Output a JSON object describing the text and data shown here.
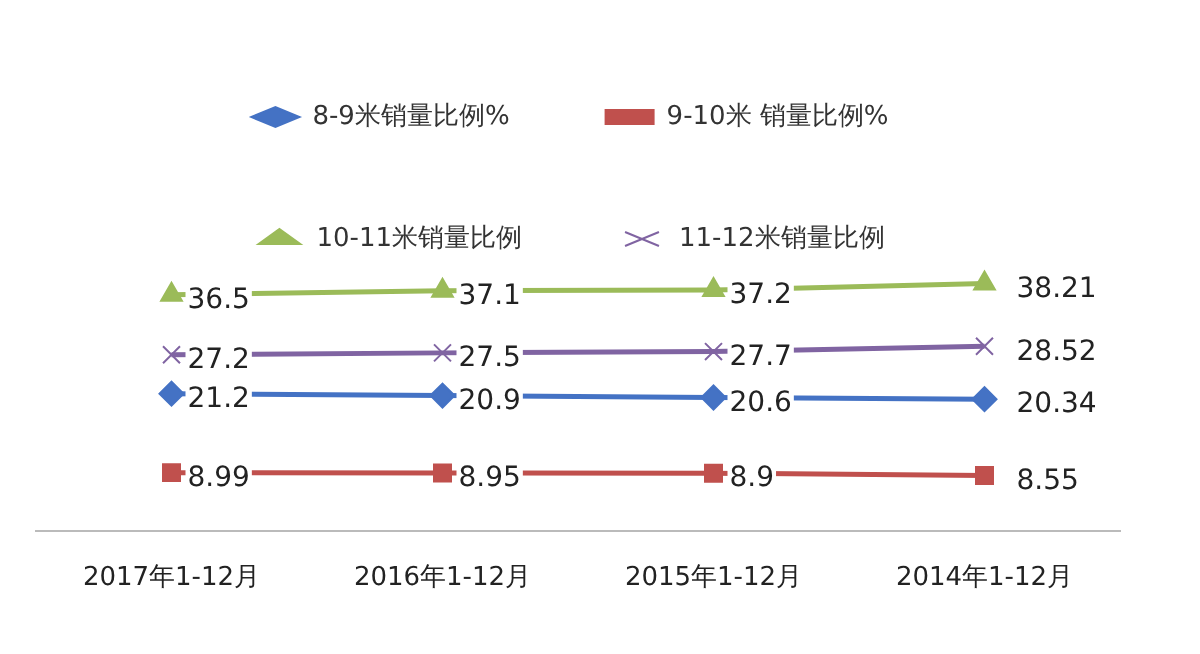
{
  "chart_data": {
    "type": "line",
    "categories": [
      "2017年1-12月",
      "2016年1-12月",
      "2015年1-12月",
      "2014年1-12月"
    ],
    "series": [
      {
        "name": "8-9米销量比例%",
        "color": "#4472c4",
        "marker": "diamond",
        "values": [
          21.2,
          20.9,
          20.6,
          20.34
        ]
      },
      {
        "name": "9-10米 销量比例%",
        "color": "#c0504d",
        "marker": "square",
        "values": [
          8.99,
          8.95,
          8.9,
          8.55
        ]
      },
      {
        "name": "10-11米销量比例",
        "color": "#9bbb59",
        "marker": "triangle",
        "values": [
          36.5,
          37.1,
          37.2,
          38.21
        ]
      },
      {
        "name": "11-12米销量比例",
        "color": "#8064a2",
        "marker": "cross",
        "values": [
          27.2,
          27.5,
          27.7,
          28.52
        ]
      }
    ],
    "relative": false,
    "data_labels": true,
    "grid": false,
    "legend": "top"
  }
}
